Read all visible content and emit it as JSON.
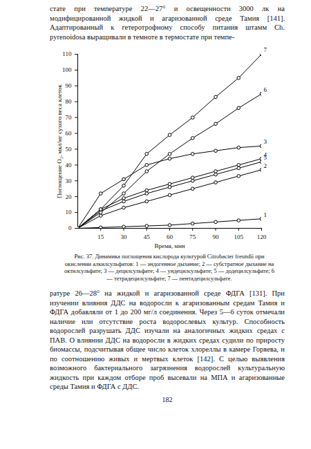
{
  "document": {
    "text_top": "стате при температуре 22—27° и освещенности 3000 лк на модифицированной жидкой и агаризованной среде Тамия [141]. Адаптированный к гетеротрофному способу питания штамм Ch. pyrenoidosa выращивали в темноте в термостате при темпе-",
    "caption": "Рис. 37. Динамика поглощения кислорода культурой Citrobacter freundii при окислении алкилсульфатов: 1 — эндогенное дыхание; 2 — субстратное дыхание на октилсульфате; 3 — децилсульфате; 4 — ундецилсульфате; 5 — додецилсульфате; 6 — тетрадецилсульфате; 7 — пентадецилсульфате.",
    "text_bottom": "ратуре 26—28° на жидкой и агаризованной среде ФДГА [131]. При изучении влияния ДДС на водоросли к агаризованным средам Тамия и ФДГА добавляли от 1 до 200 мг/л соединения. Через 5—6 суток отмечали наличие или отсутствие роста водорослевых культур. Способность водорослей разрушать ДДС изучали на аналогичных жидких средах с ПАВ. О влиянии ДДС на водоросли в жидких средах судили по приросту биомассы, подсчитывая общее число клеток хлореллы в камере Горяева, и по соотношению живых и мертвых клеток [142]. С целью выявления возможного бактериального загрязнения водорослей культуральную жидкость при каждом отборе проб высевали на МПА и агаризованные среды Тамия и ФДГА с ДДС.",
    "page_number": "182"
  },
  "chart_data": {
    "type": "line",
    "x_label": "Время, мин",
    "y_label": "Поглощение O₂, мкл/мг сухого веса клеток",
    "x": [
      0,
      15,
      30,
      45,
      60,
      75,
      90,
      105,
      120
    ],
    "xlim": [
      0,
      120
    ],
    "xticks": [
      15,
      30,
      45,
      60,
      75,
      90,
      105,
      120
    ],
    "ylim": [
      0,
      110
    ],
    "yticks": [
      0,
      10,
      20,
      30,
      40,
      50,
      60,
      70,
      80,
      90,
      100,
      110
    ],
    "color": "#000000",
    "marker": "circle",
    "series": [
      {
        "name": "1",
        "values": [
          0,
          0.5,
          1,
          1.5,
          2,
          3,
          4,
          5,
          6
        ]
      },
      {
        "name": "2",
        "values": [
          0,
          8,
          13,
          17,
          21,
          25,
          29,
          33,
          37
        ]
      },
      {
        "name": "3",
        "values": [
          0,
          22,
          31,
          40,
          44,
          47,
          49,
          51,
          52
        ]
      },
      {
        "name": "4",
        "values": [
          0,
          12,
          19,
          24,
          28,
          32,
          36,
          40,
          44
        ]
      },
      {
        "name": "5",
        "values": [
          0,
          11,
          17,
          22,
          26,
          30,
          34,
          38,
          42
        ]
      },
      {
        "name": "6",
        "values": [
          0,
          10,
          22,
          36,
          47,
          57,
          66,
          76,
          85
        ]
      },
      {
        "name": "7",
        "values": [
          0,
          12,
          27,
          47,
          59,
          70,
          83,
          95,
          110
        ]
      }
    ]
  }
}
